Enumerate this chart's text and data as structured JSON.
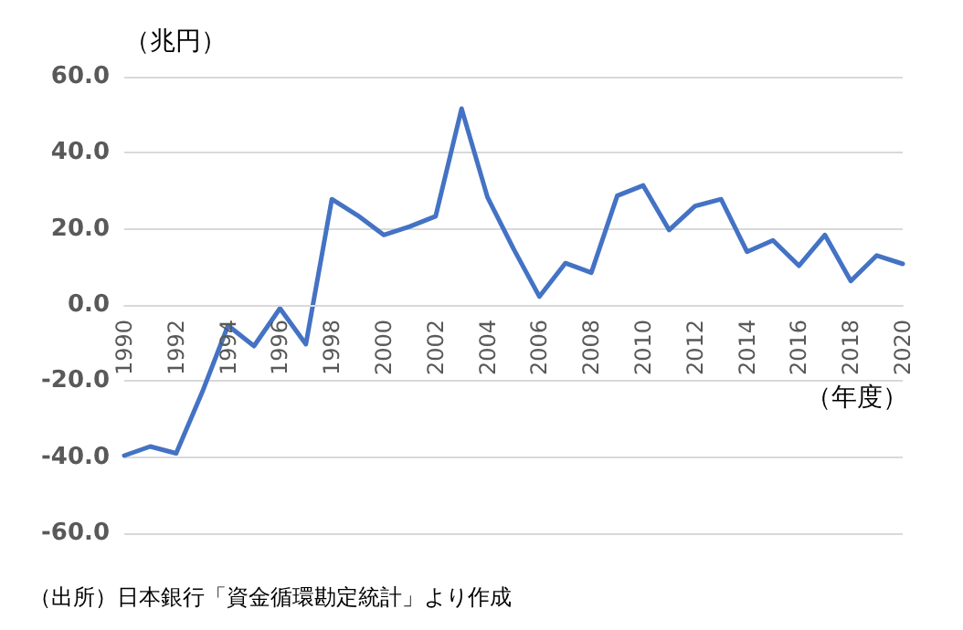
{
  "chart_data": {
    "type": "line",
    "ylabel": "（兆円）",
    "xlabel": "（年度）",
    "annotations": [
      "（出所）日本銀行「資金循環勘定統計」より作成"
    ],
    "categories": [
      "1990",
      null,
      "1992",
      null,
      "1994",
      null,
      "1996",
      null,
      "1998",
      null,
      "2000",
      null,
      "2002",
      null,
      "2004",
      null,
      "2006",
      null,
      "2008",
      null,
      "2010",
      null,
      "2012",
      null,
      "2014",
      null,
      "2016",
      null,
      "2018",
      null,
      "2020"
    ],
    "series": [
      {
        "color": "#4472c4",
        "values": [
          -39.6,
          -37.2,
          -39,
          -23,
          -5.4,
          -10.8,
          -0.9,
          -10.3,
          27.8,
          23.5,
          18.4,
          20.6,
          23.3,
          51.6,
          28.3,
          14.8,
          2.2,
          11,
          8.5,
          28.7,
          31.4,
          19.7,
          26,
          27.8,
          14,
          17,
          10.3,
          18.4,
          6.3,
          13,
          10.8
        ]
      }
    ],
    "ylim": [
      -60,
      60
    ],
    "yticks": [
      {
        "value": -60,
        "label": "-60.0"
      },
      {
        "value": -40,
        "label": "-40.0"
      },
      {
        "value": -20,
        "label": "-20.0"
      },
      {
        "value": 0,
        "label": "0.0"
      },
      {
        "value": 20,
        "label": "20.0"
      },
      {
        "value": 40,
        "label": "40.0"
      },
      {
        "value": 60,
        "label": "60.0"
      }
    ],
    "grid": "y",
    "marker": "none",
    "line_style": "solid"
  }
}
